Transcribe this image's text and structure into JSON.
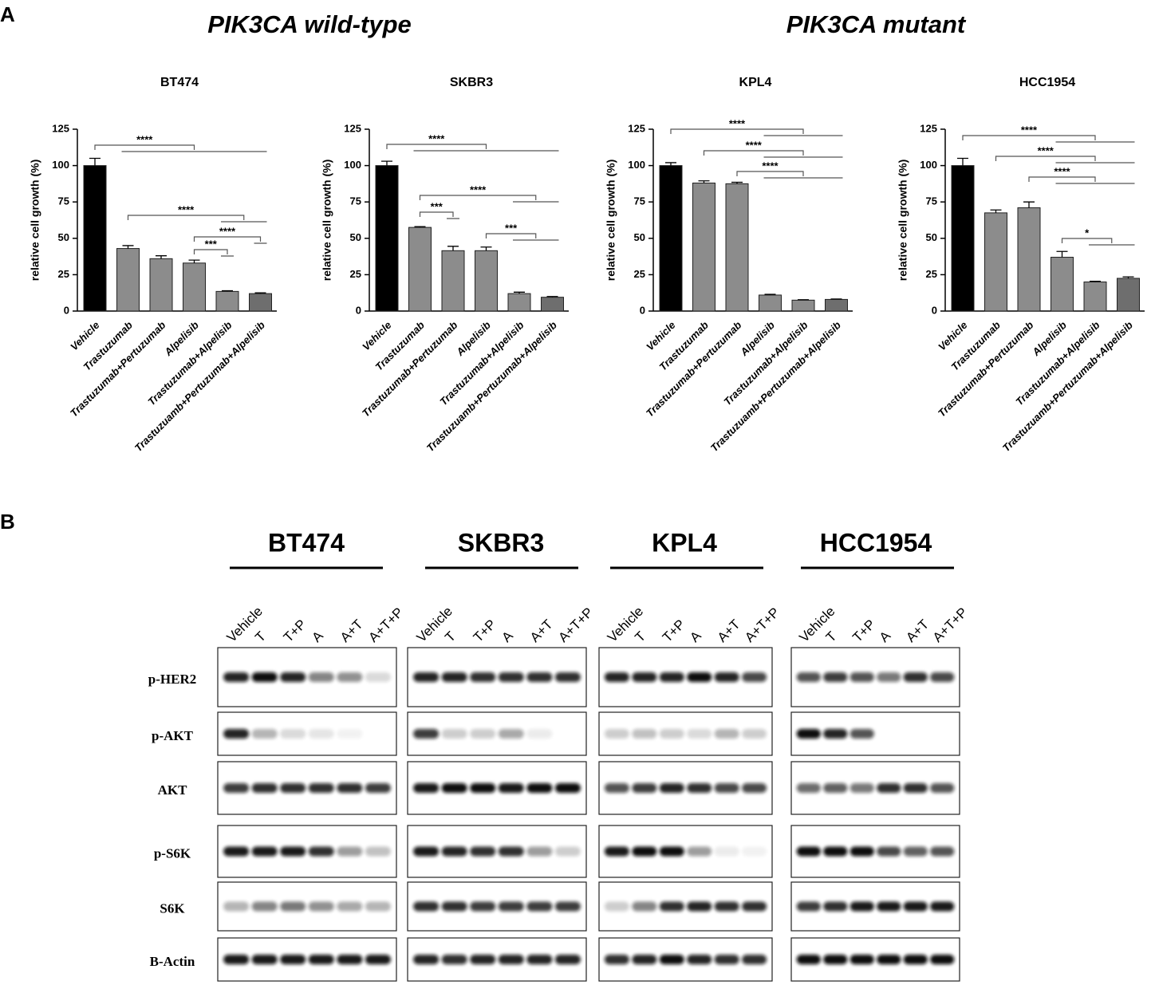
{
  "chart_data": [
    {
      "type": "bar",
      "title": "BT474",
      "ylabel": "relative cell growth (%)",
      "categories": [
        "Vehicle",
        "Trastuzumab",
        "Trastuzumab+Pertuzumab",
        "Alpelisib",
        "Trastuzumab+Alpelisib",
        "Trastuzuamb+Pertuzumab+Alpelisib"
      ],
      "values": [
        100,
        43,
        36,
        33,
        13.5,
        12
      ],
      "errors": [
        5,
        2,
        2,
        2,
        0.5,
        0.5
      ],
      "colors": [
        "#000000",
        "#8c8c8c",
        "#8c8c8c",
        "#8c8c8c",
        "#8c8c8c",
        "#6e6e6e"
      ],
      "ylim": [
        0,
        125
      ],
      "yticks": [
        0,
        25,
        50,
        75,
        100,
        125
      ],
      "annotations": [
        "****",
        "****",
        "****",
        "***"
      ]
    },
    {
      "type": "bar",
      "title": "SKBR3",
      "ylabel": "relative cell growth (%)",
      "categories": [
        "Vehicle",
        "Trastuzumab",
        "Trastuzumab+Pertuzumab",
        "Alpelisib",
        "Trastuzumab+Alpelisib",
        "Trastuzuamb+Pertuzumab+Alpelisib"
      ],
      "values": [
        100,
        57.5,
        41.5,
        41.5,
        12,
        9.5
      ],
      "errors": [
        3,
        0.5,
        3,
        2.5,
        1,
        0.5
      ],
      "colors": [
        "#000000",
        "#8c8c8c",
        "#8c8c8c",
        "#8c8c8c",
        "#8c8c8c",
        "#6e6e6e"
      ],
      "ylim": [
        0,
        125
      ],
      "yticks": [
        0,
        25,
        50,
        75,
        100,
        125
      ],
      "annotations": [
        "****",
        "****",
        "***",
        "***"
      ]
    },
    {
      "type": "bar",
      "title": "KPL4",
      "ylabel": "relative cell growth (%)",
      "categories": [
        "Vehicle",
        "Trastuzumab",
        "Trastuzumab+Pertuzumab",
        "Alpelisib",
        "Trastuzumab+Alpelisib",
        "Trastuzuamb+Pertuzumab+Alpelisib"
      ],
      "values": [
        100,
        88,
        87.5,
        11,
        7.5,
        8
      ],
      "errors": [
        2,
        1.5,
        1,
        0.5,
        0.3,
        0.3
      ],
      "colors": [
        "#000000",
        "#8c8c8c",
        "#8c8c8c",
        "#8c8c8c",
        "#8c8c8c",
        "#6e6e6e"
      ],
      "ylim": [
        0,
        125
      ],
      "yticks": [
        0,
        25,
        50,
        75,
        100,
        125
      ],
      "annotations": [
        "****",
        "****",
        "****"
      ]
    },
    {
      "type": "bar",
      "title": "HCC1954",
      "ylabel": "relative cell growth (%)",
      "categories": [
        "Vehicle",
        "Trastuzumab",
        "Trastuzumab+Pertuzumab",
        "Alpelisib",
        "Trastuzumab+Alpelisib",
        "Trastuzuamb+Pertuzumab+Alpelisib"
      ],
      "values": [
        100,
        67.5,
        71,
        37,
        20,
        22.5
      ],
      "errors": [
        5,
        2,
        4,
        4,
        0.5,
        1
      ],
      "colors": [
        "#000000",
        "#8c8c8c",
        "#8c8c8c",
        "#8c8c8c",
        "#8c8c8c",
        "#6e6e6e"
      ],
      "ylim": [
        0,
        125
      ],
      "yticks": [
        0,
        25,
        50,
        75,
        100,
        125
      ],
      "annotations": [
        "****",
        "****",
        "****",
        "*"
      ]
    }
  ],
  "figure": {
    "panel_a": "A",
    "group_titles": [
      "PIK3CA wild-type",
      "PIK3CA mutant"
    ],
    "panel_b": "B",
    "blot_cell_lines": [
      "BT474",
      "SKBR3",
      "KPL4",
      "HCC1954"
    ],
    "blot_lanes": [
      "Vehicle",
      "T",
      "T+P",
      "A",
      "A+T",
      "A+T+P"
    ],
    "blot_rows": [
      "p-HER2",
      "p-AKT",
      "AKT",
      "p-S6K",
      "S6K",
      "B-Actin"
    ]
  }
}
